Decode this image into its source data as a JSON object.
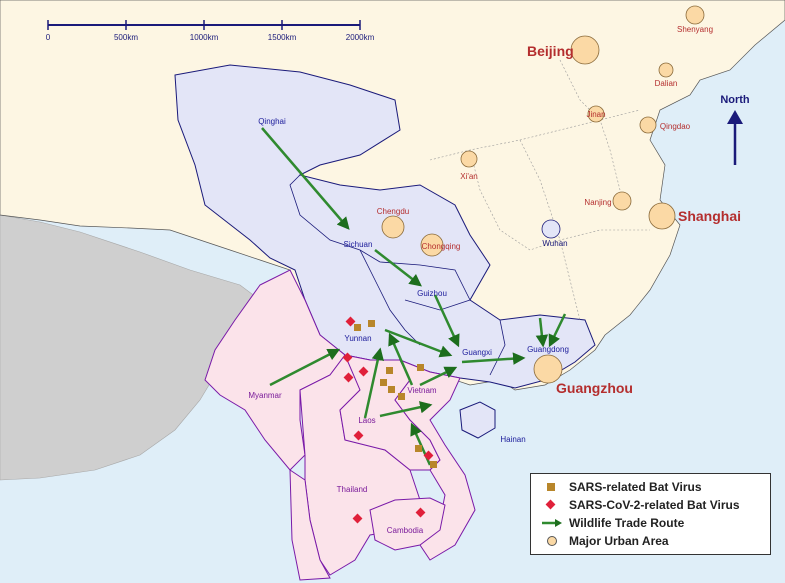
{
  "scale_bar": {
    "ticks": [
      "0",
      "500km",
      "1000km",
      "1500km",
      "2000km"
    ]
  },
  "north_label": "North",
  "regions": {
    "china_provinces": [
      "Qinghai",
      "Sichuan",
      "Yunnan",
      "Guizhou",
      "Guangxi",
      "Guangdong",
      "Hainan"
    ],
    "countries": [
      "Myanmar",
      "Laos",
      "Vietnam",
      "Thailand",
      "Cambodia"
    ]
  },
  "cities": {
    "major": [
      "Beijing",
      "Shanghai",
      "Guangzhou"
    ],
    "minor": [
      "Shenyang",
      "Dalian",
      "Jinan",
      "Qingdao",
      "Xi'an",
      "Nanjing",
      "Chengdu",
      "Chongqing"
    ],
    "wuhan": "Wuhan"
  },
  "legend": {
    "items": [
      {
        "symbol": "square",
        "label": "SARS-related Bat Virus"
      },
      {
        "symbol": "diamond",
        "label": "SARS-CoV-2-related Bat Virus"
      },
      {
        "symbol": "arrow",
        "label": "Wildlife Trade Route"
      },
      {
        "symbol": "circle",
        "label": "Major Urban Area"
      }
    ]
  },
  "colors": {
    "sea": "#dfeef8",
    "china_land": "#fdf6e3",
    "south_china": "#e3e5f7",
    "se_asia": "#fbe3ea",
    "neighbor_gray": "#cfcfcf",
    "arrow": "#2f8a2f",
    "sars_marker": "#b8862a",
    "cov2_marker": "#e0203a",
    "urban": "#fbd9a5"
  }
}
